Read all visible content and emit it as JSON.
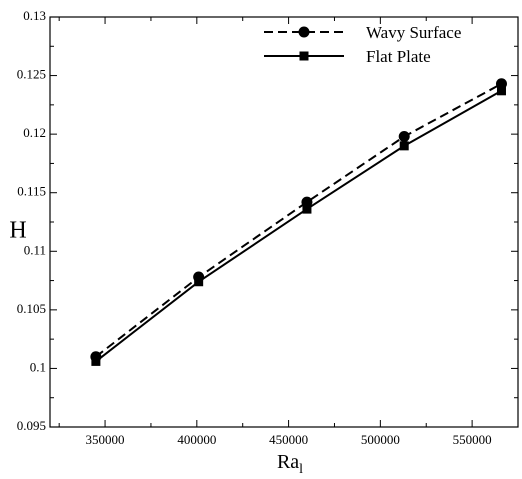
{
  "chart_data": {
    "type": "line",
    "title": "",
    "xlabel": "Ra",
    "xlabel_subscript": "l",
    "ylabel": "H",
    "xlim": [
      320000,
      575000
    ],
    "ylim": [
      0.095,
      0.13
    ],
    "xticks": [
      350000,
      400000,
      450000,
      500000,
      550000
    ],
    "yticks": [
      0.095,
      0.1,
      0.105,
      0.11,
      0.115,
      0.12,
      0.125,
      0.13
    ],
    "xtick_labels": [
      "350000",
      "400000",
      "450000",
      "500000",
      "550000"
    ],
    "ytick_labels": [
      "0.095",
      "0.1",
      "0.105",
      "0.11",
      "0.115",
      "0.12",
      "0.125",
      "0.13"
    ],
    "grid": false,
    "legend_position": "top-right",
    "series": [
      {
        "name": "Wavy Surface",
        "marker": "circle",
        "line_style": "dashed",
        "color": "#000000",
        "x": [
          345000,
          401000,
          460000,
          513000,
          566000
        ],
        "y": [
          0.101,
          0.1078,
          0.1142,
          0.1198,
          0.1243
        ]
      },
      {
        "name": "Flat Plate",
        "marker": "square",
        "line_style": "solid",
        "color": "#000000",
        "x": [
          345000,
          401000,
          460000,
          513000,
          566000
        ],
        "y": [
          0.1006,
          0.1074,
          0.1136,
          0.119,
          0.1237
        ]
      }
    ]
  }
}
